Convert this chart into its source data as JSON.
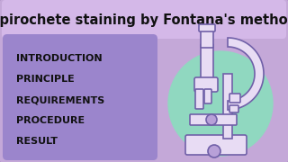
{
  "bg_color": "#c4a8d8",
  "title": "Spirochete staining by Fontana's method",
  "title_box_color": "#d4b8e8",
  "title_text_color": "#111111",
  "title_fontsize": 10.5,
  "content_box_color": "#9b85cc",
  "content_items": [
    "INTRODUCTION",
    "PRINCIPLE",
    "REQUIREMENTS",
    "PROCEDURE",
    "RESULT"
  ],
  "content_fontsize": 8.0,
  "content_text_color": "#111111",
  "microscope_circle_color": "#90d8c0",
  "border_color": "#8866aa",
  "border_linewidth": 2.0,
  "microscope_body_color": "#e8dcf4",
  "microscope_edge_color": "#7060a8",
  "microscope_knob_color": "#b8a0d8"
}
